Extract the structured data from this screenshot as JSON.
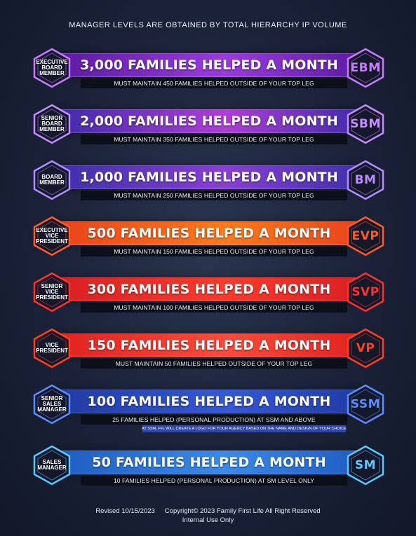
{
  "header": {
    "title": "MANAGER LEVELS ARE OBTAINED BY TOTAL HIERARCHY IP VOLUME"
  },
  "levels": [
    {
      "left_badge": "EXECUTIVE BOARD MEMBER",
      "headline": "3,000 FAMILIES HELPED A MONTH",
      "requirement": "MUST MAINTAIN 450 FAMILIES HELPED OUTSIDE OF YOUR TOP LEG",
      "right_badge": "EBM",
      "colors": {
        "from": "#5a1aa0",
        "to": "#9a3ae0",
        "accent": "#c97bff"
      }
    },
    {
      "left_badge": "SENIOR BOARD MEMBER",
      "headline": "2,000 FAMILIES HELPED A MONTH",
      "requirement": "MUST MAINTAIN 350 FAMILIES HELPED OUTSIDE OF YOUR TOP LEG",
      "right_badge": "SBM",
      "colors": {
        "from": "#3a2aa8",
        "to": "#b03cd8",
        "accent": "#c68cff"
      }
    },
    {
      "left_badge": "BOARD MEMBER",
      "headline": "1,000 FAMILIES HELPED A MONTH",
      "requirement": "MUST MAINTAIN 250 FAMILIES HELPED OUTSIDE OF YOUR TOP LEG",
      "right_badge": "BM",
      "colors": {
        "from": "#3a2fa8",
        "to": "#8a3ed6",
        "accent": "#b48cff"
      }
    },
    {
      "left_badge": "EXECUTIVE VICE PRESIDENT",
      "headline": "500 FAMILIES HELPED A MONTH",
      "requirement": "MUST MAINTAIN 150 FAMILIES HELPED OUTSIDE OF YOUR TOP LEG",
      "right_badge": "EVP",
      "colors": {
        "from": "#e8401a",
        "to": "#ff7a1a",
        "accent": "#ff5a2a"
      }
    },
    {
      "left_badge": "SENIOR VICE PRESIDENT",
      "headline": "300 FAMILIES HELPED A MONTH",
      "requirement": "MUST MAINTAIN 100 FAMILIES HELPED OUTSIDE OF YOUR TOP LEG",
      "right_badge": "SVP",
      "colors": {
        "from": "#d81e22",
        "to": "#ff3a2a",
        "accent": "#ff3030"
      }
    },
    {
      "left_badge": "VICE PRESIDENT",
      "headline": "150 FAMILIES HELPED A MONTH",
      "requirement": "MUST MAINTAIN 50 FAMILIES HELPED OUTSIDE OF YOUR TOP LEG",
      "right_badge": "VP",
      "colors": {
        "from": "#e0201e",
        "to": "#ff4a3a",
        "accent": "#ff4020"
      }
    },
    {
      "left_badge": "SENIOR SALES MANAGER",
      "headline": "100 FAMILIES HELPED A MONTH",
      "requirement": "25 FAMILIES HELPED (PERSONAL PRODUCTION) AT SSM AND ABOVE",
      "note": "AT SSM, FFL WILL CREATE A LOGO FOR YOUR AGENCY BASED ON THE NAME AND DESIGN OF YOUR CHOICE",
      "right_badge": "SSM",
      "colors": {
        "from": "#1f3aa0",
        "to": "#3458d8",
        "accent": "#5a8cff"
      }
    },
    {
      "left_badge": "SALES MANAGER",
      "headline": "50 FAMILIES HELPED A MONTH",
      "requirement": "10 FAMILIES HELPED (PERSONAL PRODUCTION) AT SM LEVEL ONLY",
      "right_badge": "SM",
      "colors": {
        "from": "#1e5ac0",
        "to": "#3a8ae8",
        "accent": "#5ac8ff"
      }
    }
  ],
  "footer": {
    "revised": "Revised 10/15/2023",
    "copyright": "Copyright© 2023 Family First Life All Right Reserved",
    "internal": "Internal Use Only"
  }
}
